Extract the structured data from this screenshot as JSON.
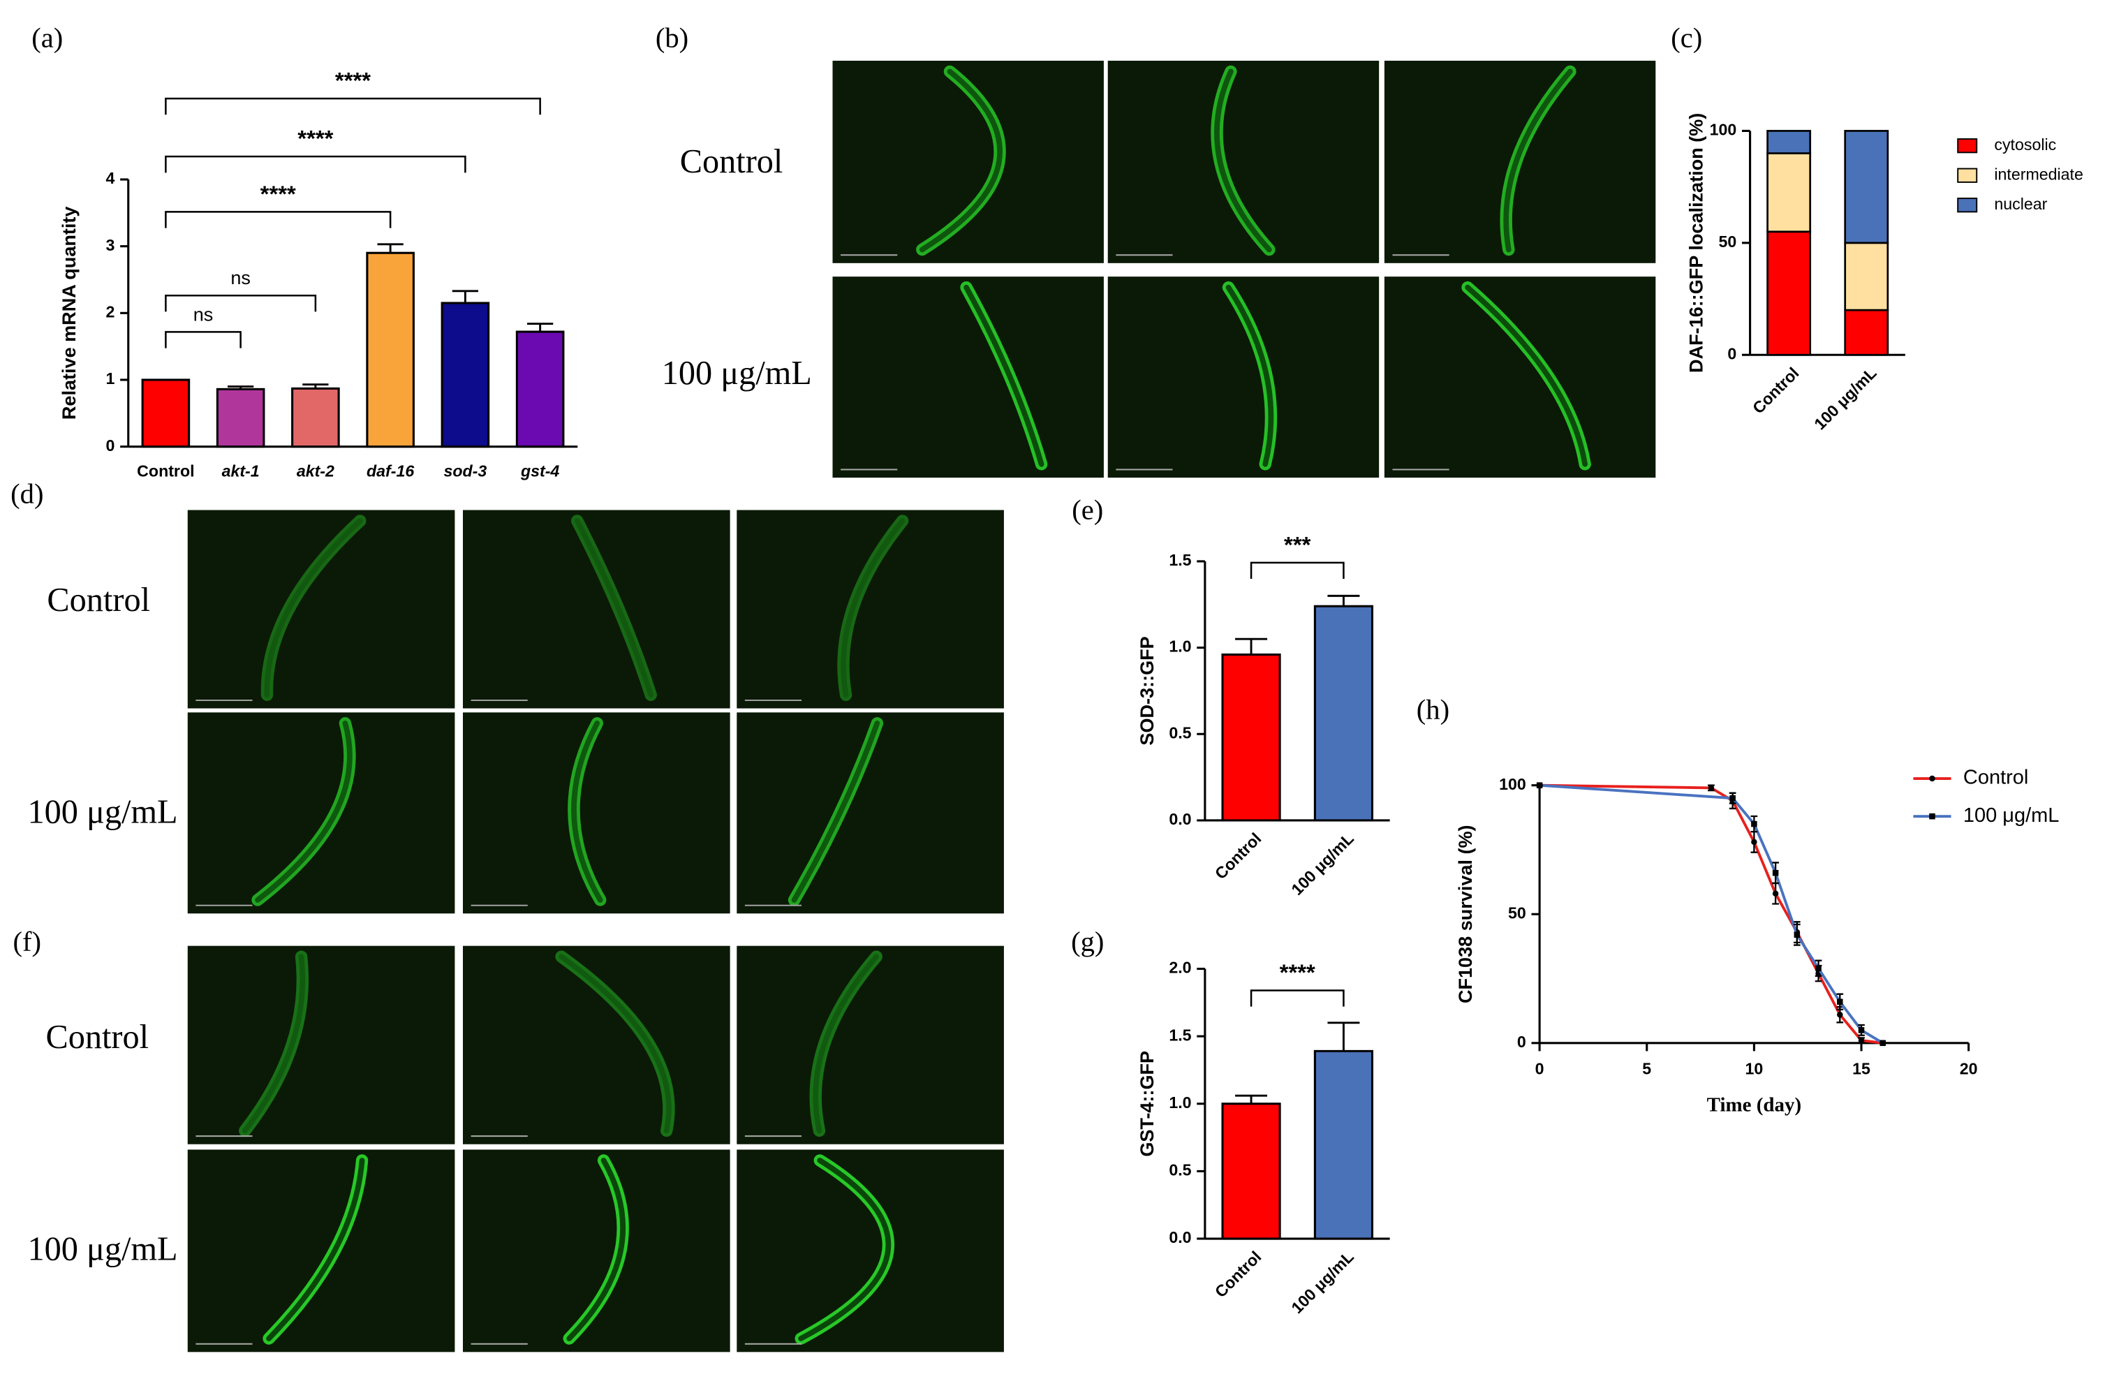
{
  "chart_data": [
    {
      "type": "bar",
      "panel": "(a)",
      "ylabel": "Relative mRNA quantity",
      "categories": [
        "Control",
        "akt-1",
        "akt-2",
        "daf-16",
        "sod-3",
        "gst-4"
      ],
      "values": [
        1.0,
        0.86,
        0.87,
        2.9,
        2.15,
        1.72
      ],
      "errors": [
        0,
        0.04,
        0.06,
        0.13,
        0.18,
        0.12
      ],
      "colors": [
        "#ff0000",
        "#b0369c",
        "#e26868",
        "#f9a43a",
        "#0c0c8c",
        "#6a0ab0"
      ],
      "ylim": [
        0,
        4
      ],
      "yticks": [
        0,
        1,
        2,
        3,
        4
      ],
      "brackets": [
        {
          "from": "Control",
          "to": "akt-1",
          "label": "ns"
        },
        {
          "from": "Control",
          "to": "akt-2",
          "label": "ns"
        },
        {
          "from": "Control",
          "to": "daf-16",
          "label": "****"
        },
        {
          "from": "Control",
          "to": "sod-3",
          "label": "****"
        },
        {
          "from": "Control",
          "to": "gst-4",
          "label": "****"
        }
      ]
    },
    {
      "type": "stacked_bar",
      "panel": "(c)",
      "ylabel": "DAF-16::GFP localization (%)",
      "categories": [
        "Control",
        "100 μg/mL"
      ],
      "series": [
        {
          "name": "cytosolic",
          "color": "#ff0000",
          "values": [
            55,
            20
          ]
        },
        {
          "name": "intermediate",
          "color": "#ffe0a0",
          "values": [
            35,
            30
          ]
        },
        {
          "name": "nuclear",
          "color": "#4a72b8",
          "values": [
            10,
            50
          ]
        }
      ],
      "ylim": [
        0,
        100
      ],
      "yticks": [
        0,
        50,
        100
      ]
    },
    {
      "type": "bar",
      "panel": "(e)",
      "ylabel": "SOD-3::GFP",
      "categories": [
        "Control",
        "100 μg/mL"
      ],
      "values": [
        0.96,
        1.24
      ],
      "errors": [
        0.09,
        0.06
      ],
      "colors": [
        "#ff0000",
        "#4a72b8"
      ],
      "ylim": [
        0,
        1.5
      ],
      "yticks": [
        {
          "value": 0,
          "label": "0.0"
        },
        0.5,
        {
          "value": 1,
          "label": "1.0"
        },
        1.5
      ],
      "brackets": [
        {
          "from": "Control",
          "to": "100 μg/mL",
          "label": "***"
        }
      ]
    },
    {
      "type": "bar",
      "panel": "(g)",
      "ylabel": "GST-4::GFP",
      "categories": [
        "Control",
        "100 μg/mL"
      ],
      "values": [
        1.0,
        1.39
      ],
      "errors": [
        0.06,
        0.21
      ],
      "colors": [
        "#ff0000",
        "#4a72b8"
      ],
      "ylim": [
        0,
        2
      ],
      "yticks": [
        {
          "value": 0,
          "label": "0.0"
        },
        0.5,
        {
          "value": 1,
          "label": "1.0"
        },
        1.5,
        {
          "value": 2,
          "label": "2.0"
        }
      ],
      "brackets": [
        {
          "from": "Control",
          "to": "100 μg/mL",
          "label": "****"
        }
      ]
    },
    {
      "type": "line",
      "panel": "(h)",
      "xlabel": "Time (day)",
      "ylabel": "CF1038 survival (%)",
      "series": [
        {
          "name": "Control",
          "color": "#e8201e",
          "marker": "circle",
          "x": [
            0,
            8,
            9,
            10,
            11,
            12,
            13,
            14,
            15,
            16
          ],
          "values": [
            100,
            99,
            94,
            78,
            58,
            43,
            27,
            11,
            1,
            0
          ],
          "errors": [
            0,
            1,
            3,
            4,
            4,
            4,
            3,
            3,
            1,
            0
          ]
        },
        {
          "name": "100 μg/mL",
          "color": "#4a72c0",
          "marker": "square",
          "x": [
            0,
            9,
            10,
            11,
            12,
            13,
            14,
            15,
            16
          ],
          "values": [
            100,
            95,
            85,
            66,
            42,
            29,
            16,
            5,
            0
          ],
          "errors": [
            0,
            2,
            3,
            4,
            4,
            3,
            3,
            2,
            0
          ]
        }
      ],
      "xlim": [
        0,
        20
      ],
      "xticks": [
        0,
        5,
        10,
        15,
        20
      ],
      "ylim": [
        0,
        100
      ],
      "yticks": [
        0,
        50,
        100
      ]
    }
  ],
  "image_panels": [
    {
      "panel": "(b)",
      "rows": [
        "Control",
        "100 μg/mL"
      ]
    },
    {
      "panel": "(d)",
      "rows": [
        "Control",
        "100 μg/mL"
      ]
    },
    {
      "panel": "(f)",
      "rows": [
        "Control",
        "100 μg/mL"
      ]
    }
  ]
}
